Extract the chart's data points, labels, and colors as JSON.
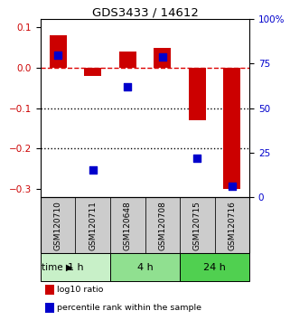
{
  "title": "GDS3433 / 14612",
  "samples": [
    "GSM120710",
    "GSM120711",
    "GSM120648",
    "GSM120708",
    "GSM120715",
    "GSM120716"
  ],
  "log10_ratio": [
    0.08,
    -0.02,
    0.04,
    0.05,
    -0.13,
    -0.3
  ],
  "percentile_rank_pct": [
    80,
    15.5,
    62,
    79,
    22,
    6
  ],
  "time_groups": [
    {
      "label": "1 h",
      "start": 0,
      "end": 2,
      "color": "#c8f0c8"
    },
    {
      "label": "4 h",
      "start": 2,
      "end": 4,
      "color": "#90e090"
    },
    {
      "label": "24 h",
      "start": 4,
      "end": 6,
      "color": "#50d050"
    }
  ],
  "ylim_left": [
    -0.32,
    0.12
  ],
  "ylim_right": [
    0,
    100
  ],
  "yticks_left": [
    0.1,
    0.0,
    -0.1,
    -0.2,
    -0.3
  ],
  "yticks_right": [
    100,
    75,
    50,
    25,
    0
  ],
  "bar_width": 0.5,
  "red_color": "#cc0000",
  "blue_color": "#0000cc",
  "dashed_line_color": "#dd0000",
  "dotted_line_color": "#000000",
  "sample_box_color": "#cccccc",
  "legend_red": "log10 ratio",
  "legend_blue": "percentile rank within the sample",
  "time_label": "time",
  "left_tick_color": "#cc0000",
  "right_tick_color": "#0000cc",
  "blue_sq_marker_size": 40
}
